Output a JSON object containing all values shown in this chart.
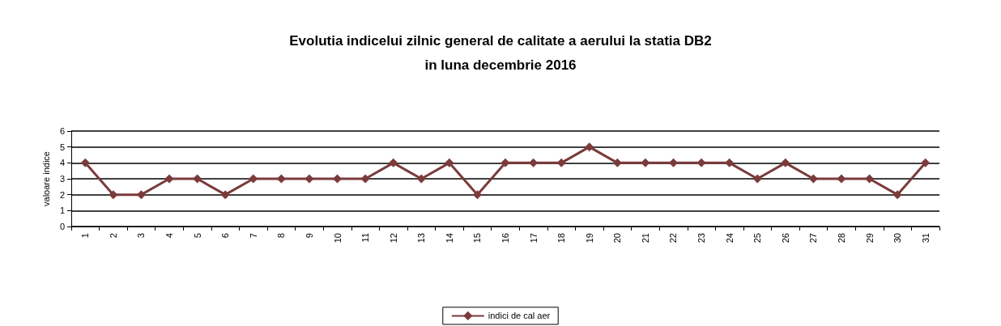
{
  "chart_data": {
    "type": "line",
    "title": "Evolutia indicelui zilnic general de calitate a aerului la statia DB2\nin luna decembrie 2016",
    "ylabel": "valoare indice",
    "categories": [
      "1",
      "2",
      "3",
      "4",
      "5",
      "6",
      "7",
      "8",
      "9",
      "10",
      "11",
      "12",
      "13",
      "14",
      "15",
      "16",
      "17",
      "18",
      "19",
      "20",
      "21",
      "22",
      "23",
      "24",
      "25",
      "26",
      "27",
      "28",
      "29",
      "30",
      "31"
    ],
    "series": [
      {
        "name": "indici de cal aer",
        "color": "#7b3b3b",
        "values": [
          4,
          2,
          2,
          3,
          3,
          2,
          3,
          3,
          3,
          3,
          3,
          4,
          3,
          4,
          2,
          4,
          4,
          4,
          5,
          4,
          4,
          4,
          4,
          4,
          3,
          4,
          3,
          3,
          3,
          2,
          4
        ]
      }
    ],
    "ylim": [
      0,
      6
    ],
    "yticks": [
      0,
      1,
      2,
      3,
      4,
      5,
      6
    ],
    "grid": "y",
    "legend": "bottom",
    "marker": "diamond",
    "line_style": "solid"
  }
}
